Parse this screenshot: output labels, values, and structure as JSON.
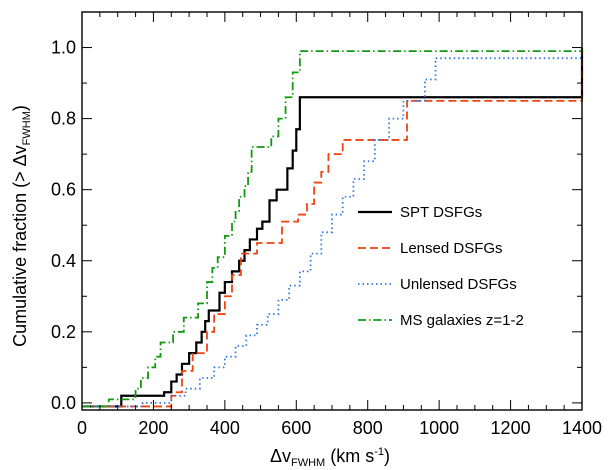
{
  "chart_data": {
    "type": "line",
    "step": true,
    "xlabel": {
      "main": "Δv",
      "sub": "FWHM",
      "unit_pre": " (km s",
      "sup": "-1",
      "unit_post": ")"
    },
    "ylabel": {
      "main": "Cumulative fraction (> Δv",
      "sub": "FWHM",
      "post": ")"
    },
    "xlim": [
      0,
      1400
    ],
    "ylim": [
      -0.02,
      1.1
    ],
    "x_ticks": [
      0,
      200,
      400,
      600,
      800,
      1000,
      1200,
      1400
    ],
    "y_ticks": [
      0.0,
      0.2,
      0.4,
      0.6,
      0.8,
      1.0
    ],
    "x_tick_labels": [
      "0",
      "200",
      "400",
      "600",
      "800",
      "1000",
      "1200",
      "1400"
    ],
    "y_tick_labels": [
      "0.0",
      "0.2",
      "0.4",
      "0.6",
      "0.8",
      "1.0"
    ],
    "legend_position": "right",
    "series": [
      {
        "name": "SPT DSFGs",
        "color": "#000000",
        "dash": "solid",
        "x": [
          0,
          110,
          110,
          200,
          230,
          250,
          265,
          280,
          300,
          320,
          335,
          345,
          355,
          385,
          400,
          420,
          440,
          455,
          470,
          490,
          505,
          525,
          545,
          575,
          590,
          600,
          610,
          1400
        ],
        "y": [
          -0.01,
          -0.01,
          0.02,
          0.02,
          0.03,
          0.06,
          0.08,
          0.11,
          0.14,
          0.17,
          0.2,
          0.23,
          0.26,
          0.31,
          0.34,
          0.37,
          0.4,
          0.43,
          0.46,
          0.49,
          0.51,
          0.57,
          0.6,
          0.66,
          0.71,
          0.77,
          0.86,
          1.0
        ]
      },
      {
        "name": "Lensed DSFGs",
        "color": "#ee4411",
        "dash": "dashed",
        "x": [
          0,
          230,
          250,
          265,
          280,
          310,
          350,
          370,
          400,
          420,
          445,
          490,
          560,
          605,
          630,
          650,
          670,
          690,
          730,
          910,
          1160,
          1400
        ],
        "y": [
          -0.01,
          -0.01,
          0.02,
          0.03,
          0.09,
          0.14,
          0.2,
          0.25,
          0.3,
          0.36,
          0.42,
          0.45,
          0.51,
          0.53,
          0.56,
          0.62,
          0.65,
          0.7,
          0.74,
          0.85,
          0.85,
          1.0
        ]
      },
      {
        "name": "Unlensed DSFGs",
        "color": "#3377dd",
        "dash": "dotted",
        "x": [
          0,
          170,
          250,
          290,
          330,
          370,
          400,
          430,
          460,
          490,
          520,
          550,
          580,
          610,
          640,
          670,
          700,
          730,
          760,
          790,
          820,
          860,
          900,
          960,
          990,
          1400
        ],
        "y": [
          -0.01,
          0.0,
          0.02,
          0.04,
          0.07,
          0.1,
          0.13,
          0.16,
          0.19,
          0.22,
          0.25,
          0.29,
          0.33,
          0.37,
          0.42,
          0.48,
          0.53,
          0.58,
          0.63,
          0.68,
          0.74,
          0.8,
          0.85,
          0.91,
          0.97,
          1.0
        ]
      },
      {
        "name": "MS galaxies z=1-2",
        "color": "#119911",
        "dash": "dashdot",
        "x": [
          0,
          75,
          150,
          165,
          185,
          205,
          220,
          255,
          285,
          325,
          350,
          365,
          380,
          400,
          420,
          430,
          440,
          455,
          465,
          475,
          530,
          550,
          570,
          590,
          610,
          1400
        ],
        "y": [
          -0.01,
          0.01,
          0.04,
          0.07,
          0.1,
          0.13,
          0.17,
          0.2,
          0.24,
          0.28,
          0.34,
          0.38,
          0.41,
          0.47,
          0.51,
          0.54,
          0.58,
          0.61,
          0.65,
          0.72,
          0.75,
          0.8,
          0.86,
          0.93,
          0.99,
          1.0
        ]
      }
    ]
  }
}
